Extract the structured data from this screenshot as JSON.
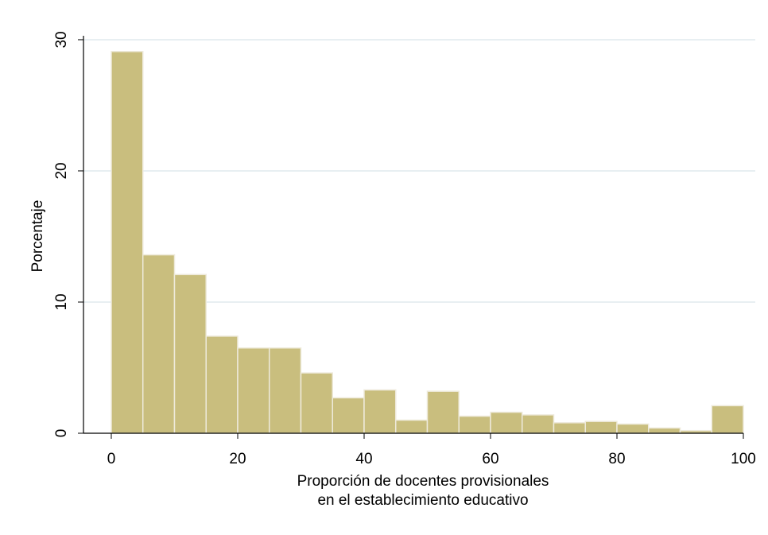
{
  "chart_data": {
    "type": "histogram",
    "xlabel": [
      "Proporción de docentes provisionales",
      "en el establecimiento educativo"
    ],
    "ylabel": "Porcentaje",
    "bins": [
      0,
      5,
      10,
      15,
      20,
      25,
      30,
      35,
      40,
      45,
      50,
      55,
      60,
      65,
      70,
      75,
      80,
      85,
      90,
      95,
      100
    ],
    "values": [
      29.1,
      13.6,
      12.1,
      7.4,
      6.5,
      6.5,
      4.6,
      2.7,
      3.3,
      1.0,
      3.2,
      1.3,
      1.6,
      1.4,
      0.8,
      0.9,
      0.7,
      0.4,
      0.2,
      2.1
    ],
    "color": "#c9be7e",
    "xlim": [
      -4.4,
      100
    ],
    "xticks": [
      0,
      20,
      40,
      60,
      80,
      100
    ],
    "ylim": [
      0,
      30.3
    ],
    "yticks": [
      0,
      10,
      20,
      30
    ],
    "grid": true
  }
}
